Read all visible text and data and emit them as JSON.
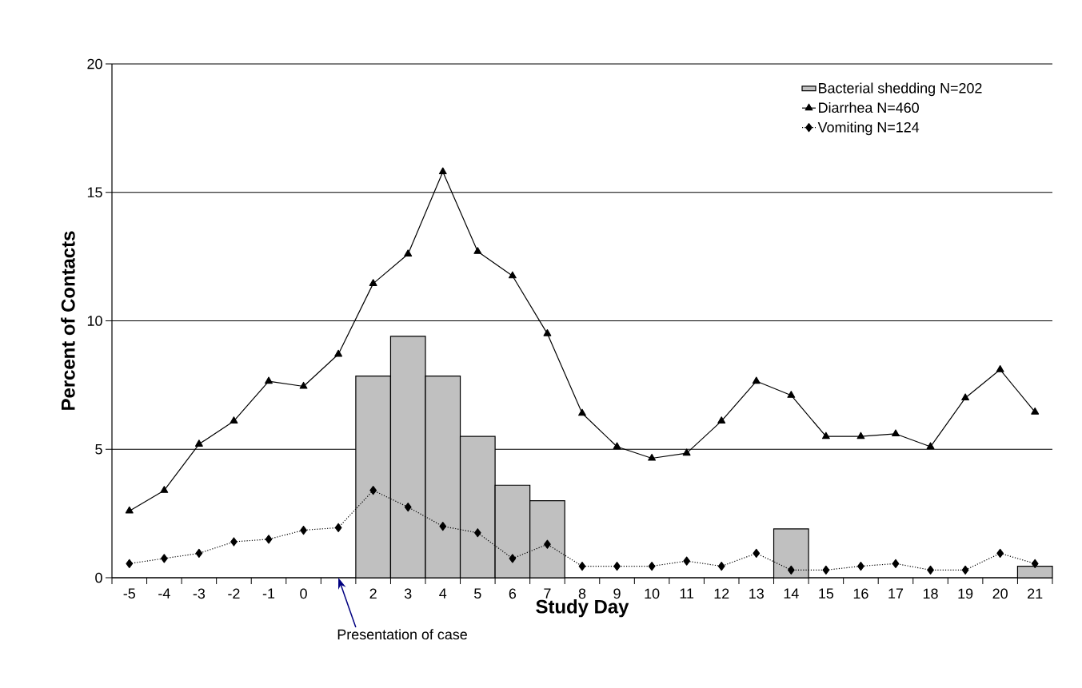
{
  "chart_data": {
    "type": "line",
    "xlabel": "Study Day",
    "ylabel": "Percent of Contacts",
    "categories": [
      "-5",
      "-4",
      "-3",
      "-2",
      "-1",
      "0",
      null,
      "2",
      "3",
      "4",
      "5",
      "6",
      "7",
      "8",
      "9",
      "10",
      "11",
      "12",
      "13",
      "14",
      "15",
      "16",
      "17",
      "18",
      "19",
      "20",
      "21"
    ],
    "series": [
      {
        "name": "Bacterial shedding N=202",
        "type": "bar",
        "color": "#c0c0c0",
        "values": [
          null,
          null,
          null,
          null,
          null,
          null,
          null,
          7.85,
          9.4,
          7.85,
          5.5,
          3.6,
          3.0,
          null,
          null,
          null,
          null,
          null,
          null,
          1.9,
          null,
          null,
          null,
          null,
          null,
          null,
          0.45
        ]
      },
      {
        "name": "Diarrhea N=460",
        "color": "#000000",
        "marker": "triangle",
        "line_style": "solid",
        "values": [
          2.6,
          3.4,
          5.2,
          6.1,
          7.65,
          7.45,
          8.7,
          11.45,
          12.6,
          15.8,
          12.7,
          11.75,
          9.5,
          6.4,
          5.1,
          4.65,
          4.85,
          6.1,
          7.65,
          7.1,
          5.5,
          5.5,
          5.6,
          5.1,
          7.0,
          8.1,
          6.45
        ]
      },
      {
        "name": "Vomiting N=124",
        "color": "#000000",
        "marker": "diamond",
        "line_style": "dotted",
        "values": [
          0.55,
          0.75,
          0.95,
          1.4,
          1.5,
          1.85,
          1.95,
          3.4,
          2.75,
          2.0,
          1.75,
          0.75,
          1.3,
          0.45,
          0.45,
          0.45,
          0.65,
          0.45,
          0.95,
          0.3,
          0.3,
          0.45,
          0.55,
          0.3,
          0.3,
          0.95,
          0.55
        ]
      }
    ],
    "ylim": [
      0,
      20
    ],
    "yticks": [
      0,
      5,
      10,
      15,
      20
    ],
    "grid": "y",
    "legend": "top right",
    "annotations": [
      "Presentation of case"
    ]
  }
}
